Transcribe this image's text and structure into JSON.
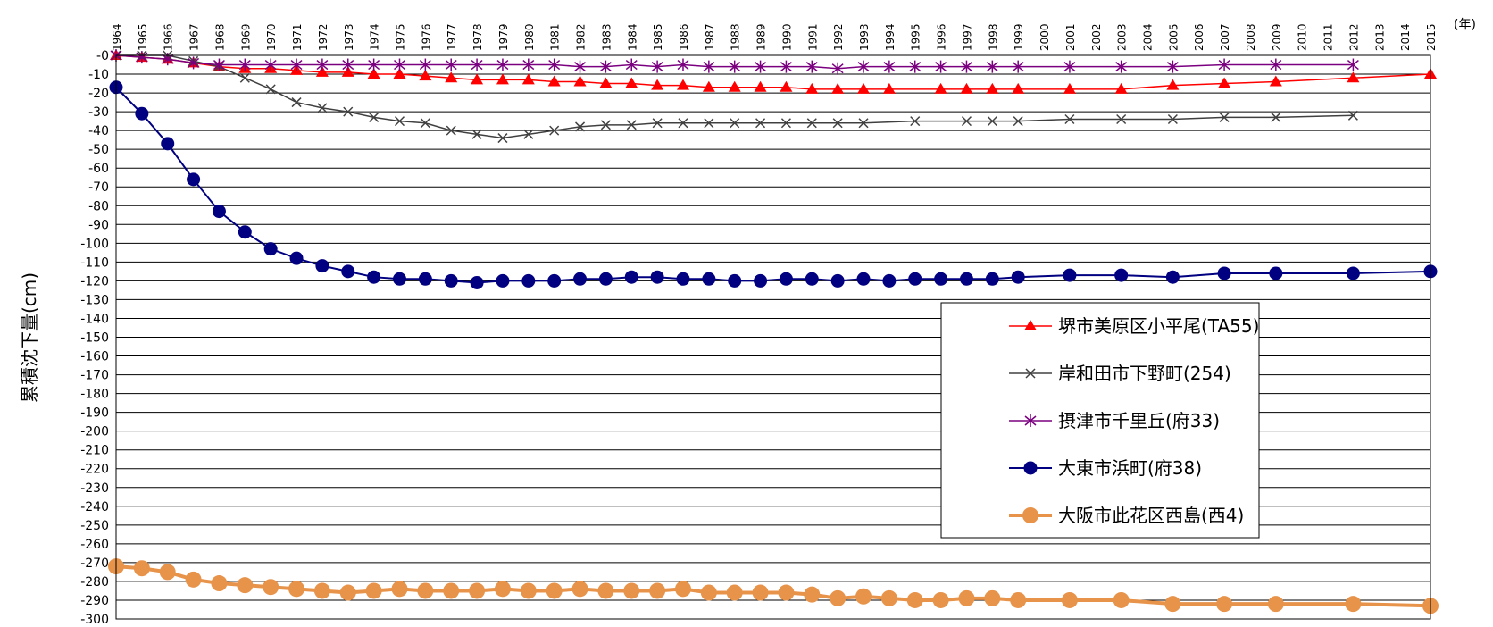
{
  "chart_data": {
    "type": "line",
    "ylabel": "累積沈下量(cm)",
    "x_unit": "(年)",
    "x_categories": [
      "1964",
      "1965",
      "1966",
      "1967",
      "1968",
      "1969",
      "1970",
      "1971",
      "1972",
      "1973",
      "1974",
      "1975",
      "1976",
      "1977",
      "1978",
      "1979",
      "1980",
      "1981",
      "1982",
      "1983",
      "1984",
      "1985",
      "1986",
      "1987",
      "1988",
      "1989",
      "1990",
      "1991",
      "1992",
      "1993",
      "1994",
      "1995",
      "1996",
      "1997",
      "1998",
      "1999",
      "2000",
      "2001",
      "2002",
      "2003",
      "2004",
      "2005",
      "2006",
      "2007",
      "2008",
      "2009",
      "2010",
      "2011",
      "2012",
      "2013",
      "2014",
      "2015"
    ],
    "ylim": [
      -300,
      0
    ],
    "ystep": 10,
    "grid": true,
    "legend_position": "right",
    "series": [
      {
        "name": "堺市美原区小平尾(TA55)",
        "color": "#ff0000",
        "marker": "triangle",
        "x": [
          "1964",
          "1965",
          "1966",
          "1967",
          "1968",
          "1969",
          "1970",
          "1971",
          "1972",
          "1973",
          "1974",
          "1975",
          "1976",
          "1977",
          "1978",
          "1979",
          "1980",
          "1981",
          "1982",
          "1983",
          "1984",
          "1985",
          "1986",
          "1987",
          "1988",
          "1989",
          "1990",
          "1991",
          "1992",
          "1993",
          "1994",
          "1996",
          "1997",
          "1998",
          "1999",
          "2001",
          "2003",
          "2005",
          "2007",
          "2009",
          "2012",
          "2015"
        ],
        "values": [
          0,
          -1,
          -2,
          -4,
          -6,
          -7,
          -7,
          -8,
          -9,
          -9,
          -10,
          -10,
          -11,
          -12,
          -13,
          -13,
          -13,
          -14,
          -14,
          -15,
          -15,
          -16,
          -16,
          -17,
          -17,
          -17,
          -17,
          -18,
          -18,
          -18,
          -18,
          -18,
          -18,
          -18,
          -18,
          -18,
          -18,
          -16,
          -15,
          -14,
          -12,
          -10
        ]
      },
      {
        "name": "岸和田市下野町(254)",
        "color": "#404040",
        "marker": "x",
        "x": [
          "1964",
          "1965",
          "1966",
          "1967",
          "1968",
          "1969",
          "1970",
          "1971",
          "1972",
          "1973",
          "1974",
          "1975",
          "1976",
          "1977",
          "1978",
          "1979",
          "1980",
          "1981",
          "1982",
          "1983",
          "1984",
          "1985",
          "1986",
          "1987",
          "1988",
          "1989",
          "1990",
          "1991",
          "1992",
          "1993",
          "1995",
          "1997",
          "1998",
          "1999",
          "2001",
          "2003",
          "2005",
          "2007",
          "2009",
          "2012"
        ],
        "values": [
          0,
          0,
          0,
          -3,
          -6,
          -12,
          -18,
          -25,
          -28,
          -30,
          -33,
          -35,
          -36,
          -40,
          -42,
          -44,
          -42,
          -40,
          -38,
          -37,
          -37,
          -36,
          -36,
          -36,
          -36,
          -36,
          -36,
          -36,
          -36,
          -36,
          -35,
          -35,
          -35,
          -35,
          -34,
          -34,
          -34,
          -33,
          -33,
          -32
        ]
      },
      {
        "name": "摂津市千里丘(府33)",
        "color": "#7b0080",
        "marker": "star",
        "x": [
          "1964",
          "1965",
          "1966",
          "1967",
          "1968",
          "1969",
          "1970",
          "1971",
          "1972",
          "1973",
          "1974",
          "1975",
          "1976",
          "1977",
          "1978",
          "1979",
          "1980",
          "1981",
          "1982",
          "1983",
          "1984",
          "1985",
          "1986",
          "1987",
          "1988",
          "1989",
          "1990",
          "1991",
          "1992",
          "1993",
          "1994",
          "1995",
          "1996",
          "1997",
          "1998",
          "1999",
          "2001",
          "2003",
          "2005",
          "2007",
          "2009",
          "2012"
        ],
        "values": [
          0,
          -1,
          -2,
          -4,
          -5,
          -5,
          -5,
          -5,
          -5,
          -5,
          -5,
          -5,
          -5,
          -5,
          -5,
          -5,
          -5,
          -5,
          -6,
          -6,
          -5,
          -6,
          -5,
          -6,
          -6,
          -6,
          -6,
          -6,
          -7,
          -6,
          -6,
          -6,
          -6,
          -6,
          -6,
          -6,
          -6,
          -6,
          -6,
          -5,
          -5,
          -5
        ]
      },
      {
        "name": "大東市浜町(府38)",
        "color": "#000080",
        "marker": "circle",
        "x": [
          "1964",
          "1965",
          "1966",
          "1967",
          "1968",
          "1969",
          "1970",
          "1971",
          "1972",
          "1973",
          "1974",
          "1975",
          "1976",
          "1977",
          "1978",
          "1979",
          "1980",
          "1981",
          "1982",
          "1983",
          "1984",
          "1985",
          "1986",
          "1987",
          "1988",
          "1989",
          "1990",
          "1991",
          "1992",
          "1993",
          "1994",
          "1995",
          "1996",
          "1997",
          "1998",
          "1999",
          "2001",
          "2003",
          "2005",
          "2007",
          "2009",
          "2012",
          "2015"
        ],
        "values": [
          -17,
          -31,
          -47,
          -66,
          -83,
          -94,
          -103,
          -108,
          -112,
          -115,
          -118,
          -119,
          -119,
          -120,
          -121,
          -120,
          -120,
          -120,
          -119,
          -119,
          -118,
          -118,
          -119,
          -119,
          -120,
          -120,
          -119,
          -119,
          -120,
          -119,
          -120,
          -119,
          -119,
          -119,
          -119,
          -118,
          -117,
          -117,
          -118,
          -116,
          -116,
          -116,
          -115
        ]
      },
      {
        "name": "大阪市此花区西島(西4)",
        "color": "#e8934a",
        "marker": "bigcircle",
        "x": [
          "1964",
          "1965",
          "1966",
          "1967",
          "1968",
          "1969",
          "1970",
          "1971",
          "1972",
          "1973",
          "1974",
          "1975",
          "1976",
          "1977",
          "1978",
          "1979",
          "1980",
          "1981",
          "1982",
          "1983",
          "1984",
          "1985",
          "1986",
          "1987",
          "1988",
          "1989",
          "1990",
          "1991",
          "1992",
          "1993",
          "1994",
          "1995",
          "1996",
          "1997",
          "1998",
          "1999",
          "2001",
          "2003",
          "2005",
          "2007",
          "2009",
          "2012",
          "2015"
        ],
        "values": [
          -272,
          -273,
          -275,
          -279,
          -281,
          -282,
          -283,
          -284,
          -285,
          -286,
          -285,
          -284,
          -285,
          -285,
          -285,
          -284,
          -285,
          -285,
          -284,
          -285,
          -285,
          -285,
          -284,
          -286,
          -286,
          -286,
          -286,
          -287,
          -289,
          -288,
          -289,
          -290,
          -290,
          -289,
          -289,
          -290,
          -290,
          -290,
          -292,
          -292,
          -292,
          -292,
          -293
        ]
      }
    ]
  }
}
